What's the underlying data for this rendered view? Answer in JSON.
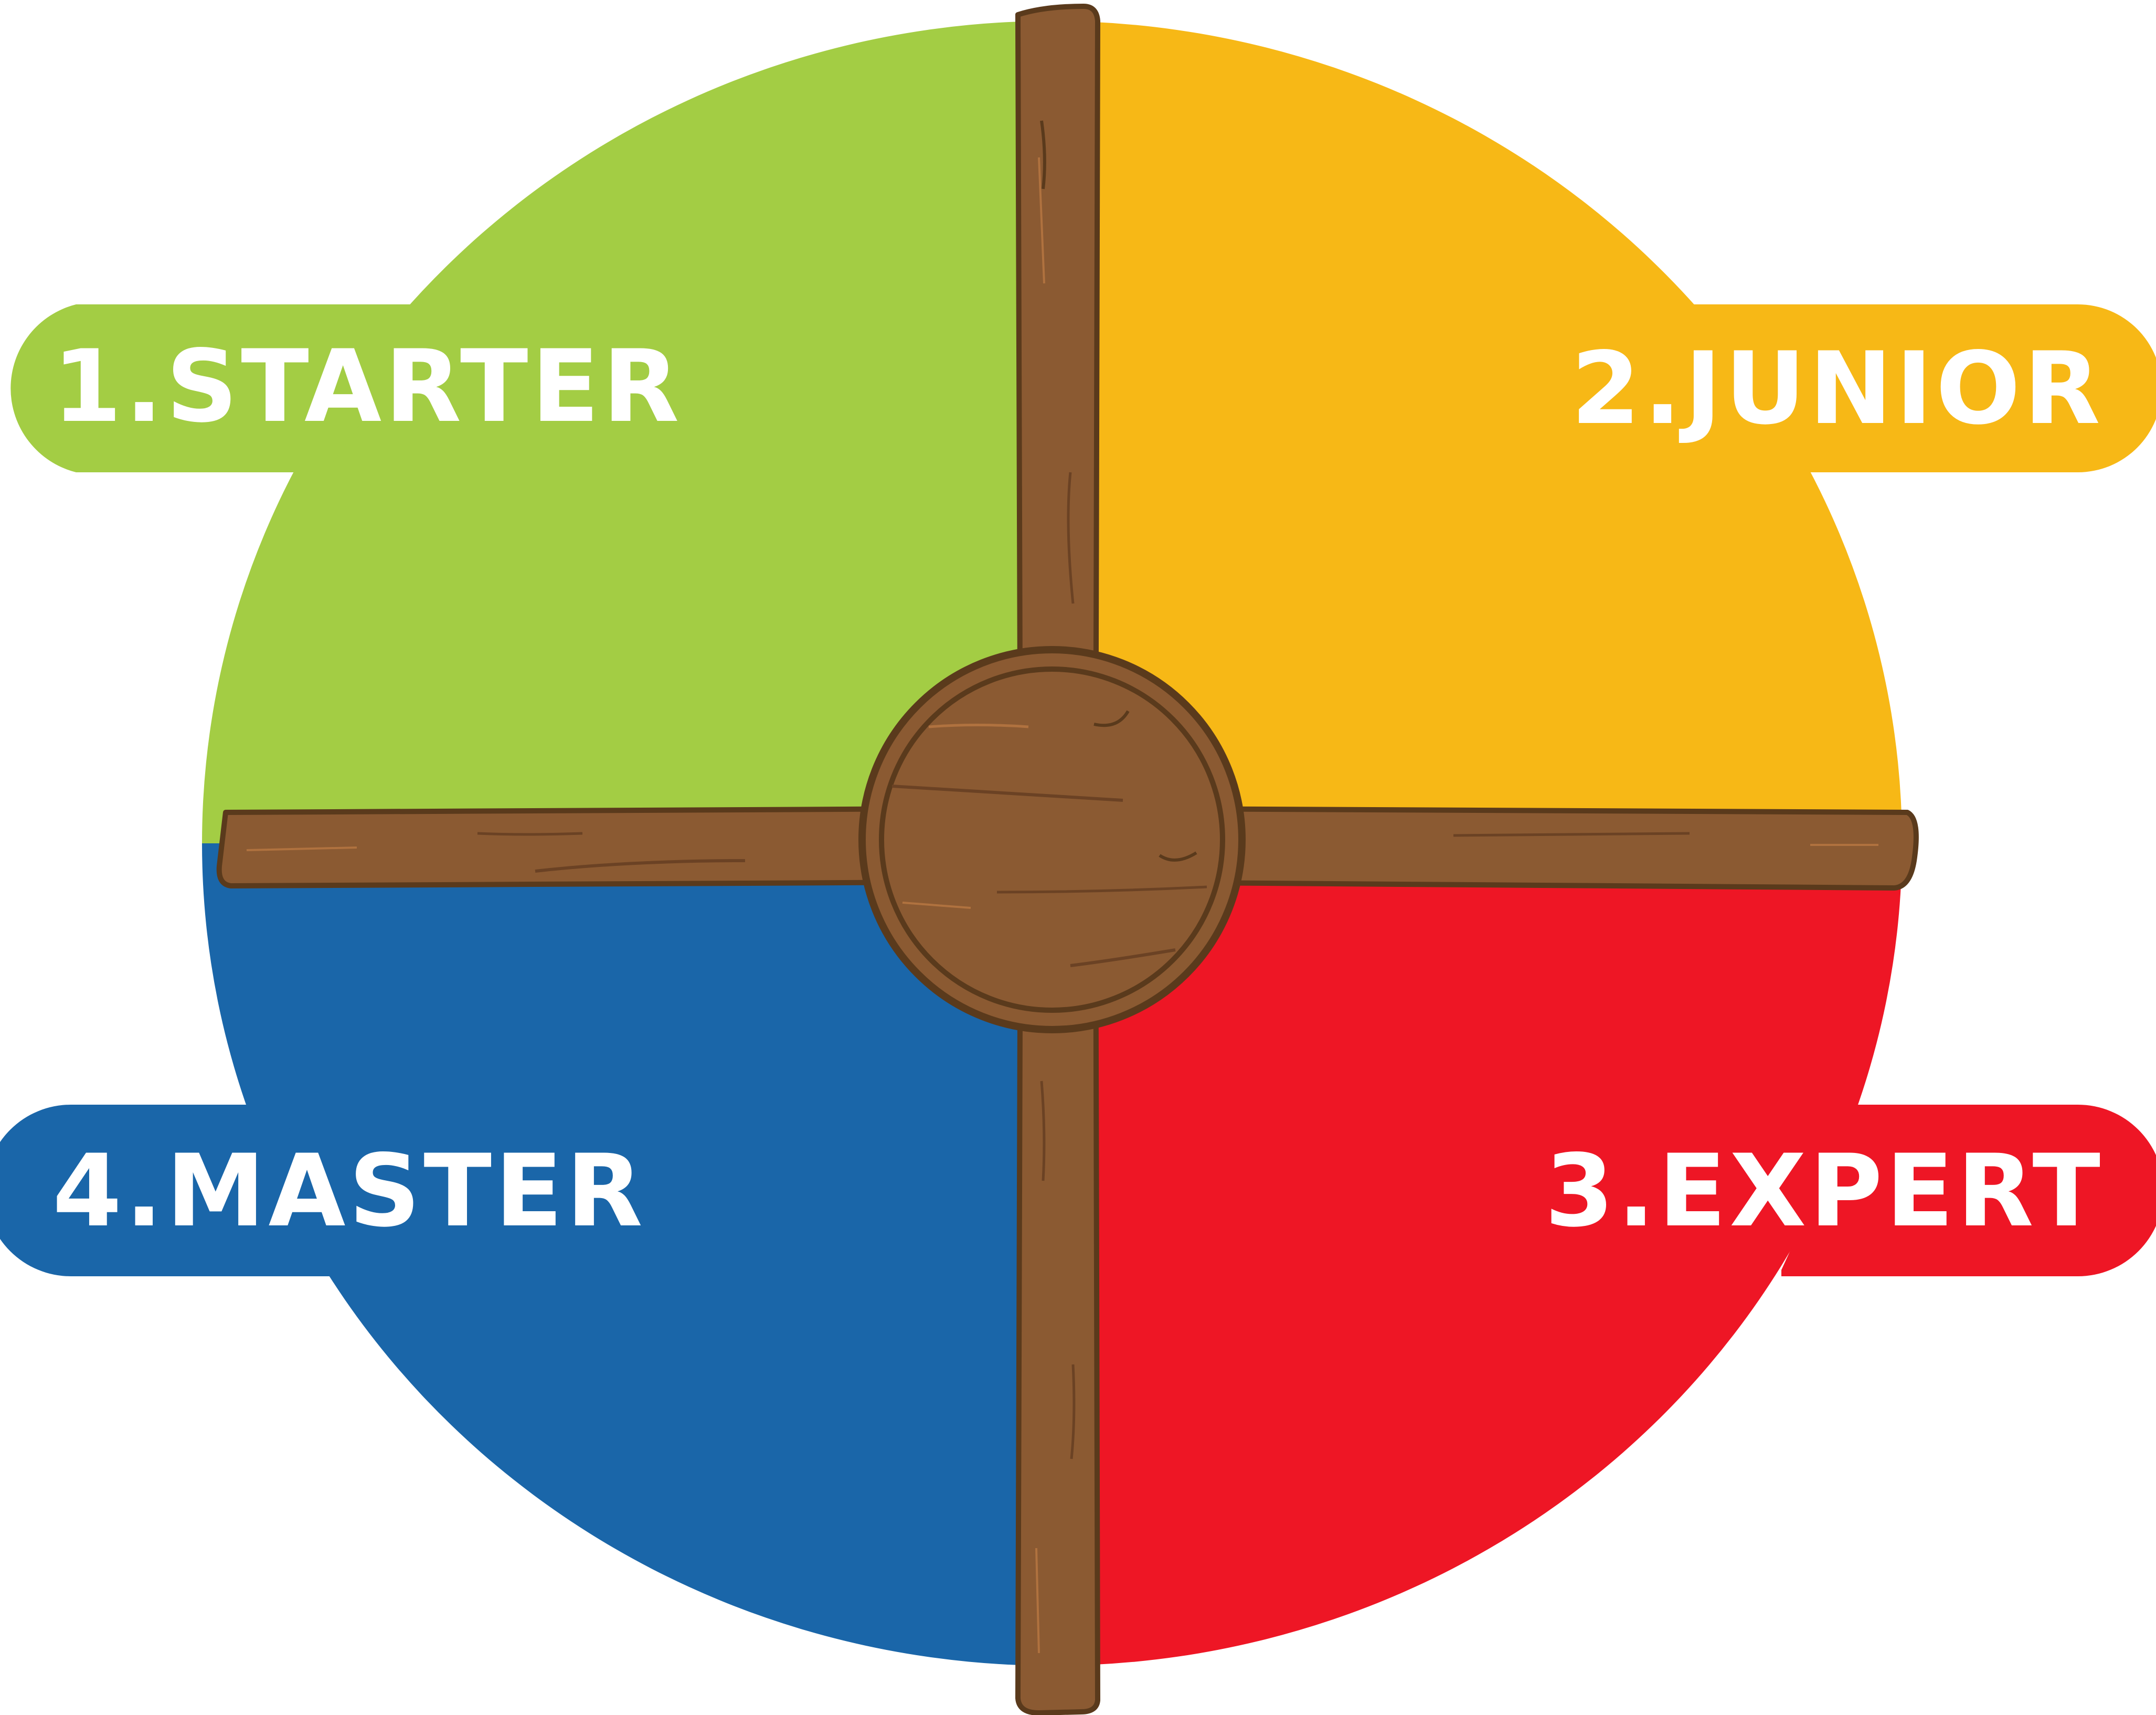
{
  "stages": [
    {
      "id": "starter",
      "label": "1.STARTER",
      "color": "#a3cd44"
    },
    {
      "id": "junior",
      "label": "2.JUNIOR",
      "color": "#f7b816"
    },
    {
      "id": "expert",
      "label": "3.EXPERT",
      "color": "#ee1625"
    },
    {
      "id": "master",
      "label": "4.MASTER",
      "color": "#1a66a9"
    }
  ],
  "wood": {
    "fill": "#8b5a32",
    "outline": "#5a3a1c",
    "grain": "#6b4224",
    "highlight": "#b0723f"
  },
  "label_text_color": "#ffffff"
}
